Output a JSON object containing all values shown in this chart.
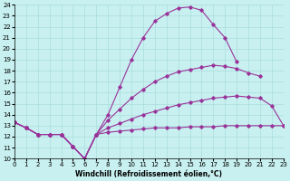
{
  "xlabel": "Windchill (Refroidissement éolien,°C)",
  "bg_color": "#c8f0f0",
  "grid_color": "#aadddd",
  "line_color": "#993399",
  "xlim": [
    0,
    23
  ],
  "ylim": [
    10,
    24
  ],
  "xticks": [
    0,
    1,
    2,
    3,
    4,
    5,
    6,
    7,
    8,
    9,
    10,
    11,
    12,
    13,
    14,
    15,
    16,
    17,
    18,
    19,
    20,
    21,
    22,
    23
  ],
  "yticks": [
    10,
    11,
    12,
    13,
    14,
    15,
    16,
    17,
    18,
    19,
    20,
    21,
    22,
    23,
    24
  ],
  "series": [
    {
      "x": [
        0,
        1,
        2,
        3,
        4,
        5,
        6,
        7,
        8,
        9,
        10,
        11,
        12,
        13,
        14,
        15,
        16,
        17,
        18,
        19
      ],
      "y": [
        13.3,
        12.8,
        12.2,
        12.2,
        12.2,
        11.1,
        10.0,
        12.2,
        14.0,
        16.5,
        19.0,
        21.0,
        22.5,
        23.2,
        23.7,
        23.8,
        23.5,
        22.2,
        21.0,
        18.8
      ]
    },
    {
      "x": [
        0,
        1,
        2,
        3,
        4,
        5,
        6,
        7,
        8,
        9,
        10,
        11,
        12,
        13,
        14,
        15,
        16,
        17,
        18,
        19,
        20,
        21
      ],
      "y": [
        13.3,
        12.8,
        12.2,
        12.2,
        12.2,
        11.1,
        10.0,
        12.2,
        13.5,
        14.5,
        15.5,
        16.3,
        17.0,
        17.5,
        17.9,
        18.1,
        18.3,
        18.5,
        18.4,
        18.2,
        17.8,
        17.5
      ]
    },
    {
      "x": [
        0,
        1,
        2,
        3,
        4,
        5,
        6,
        7,
        8,
        9,
        10,
        11,
        12,
        13,
        14,
        15,
        16,
        17,
        18,
        19,
        20,
        21,
        22,
        23
      ],
      "y": [
        13.3,
        12.8,
        12.2,
        12.2,
        12.2,
        11.1,
        10.0,
        12.2,
        12.8,
        13.2,
        13.6,
        14.0,
        14.3,
        14.6,
        14.9,
        15.1,
        15.3,
        15.5,
        15.6,
        15.7,
        15.6,
        15.5,
        14.8,
        13.0
      ]
    },
    {
      "x": [
        0,
        1,
        2,
        3,
        4,
        5,
        6,
        7,
        8,
        9,
        10,
        11,
        12,
        13,
        14,
        15,
        16,
        17,
        18,
        19,
        20,
        21,
        22,
        23
      ],
      "y": [
        13.3,
        12.8,
        12.2,
        12.2,
        12.2,
        11.1,
        10.0,
        12.2,
        12.4,
        12.5,
        12.6,
        12.7,
        12.8,
        12.8,
        12.8,
        12.9,
        12.9,
        12.9,
        13.0,
        13.0,
        13.0,
        13.0,
        13.0,
        13.0
      ]
    }
  ]
}
